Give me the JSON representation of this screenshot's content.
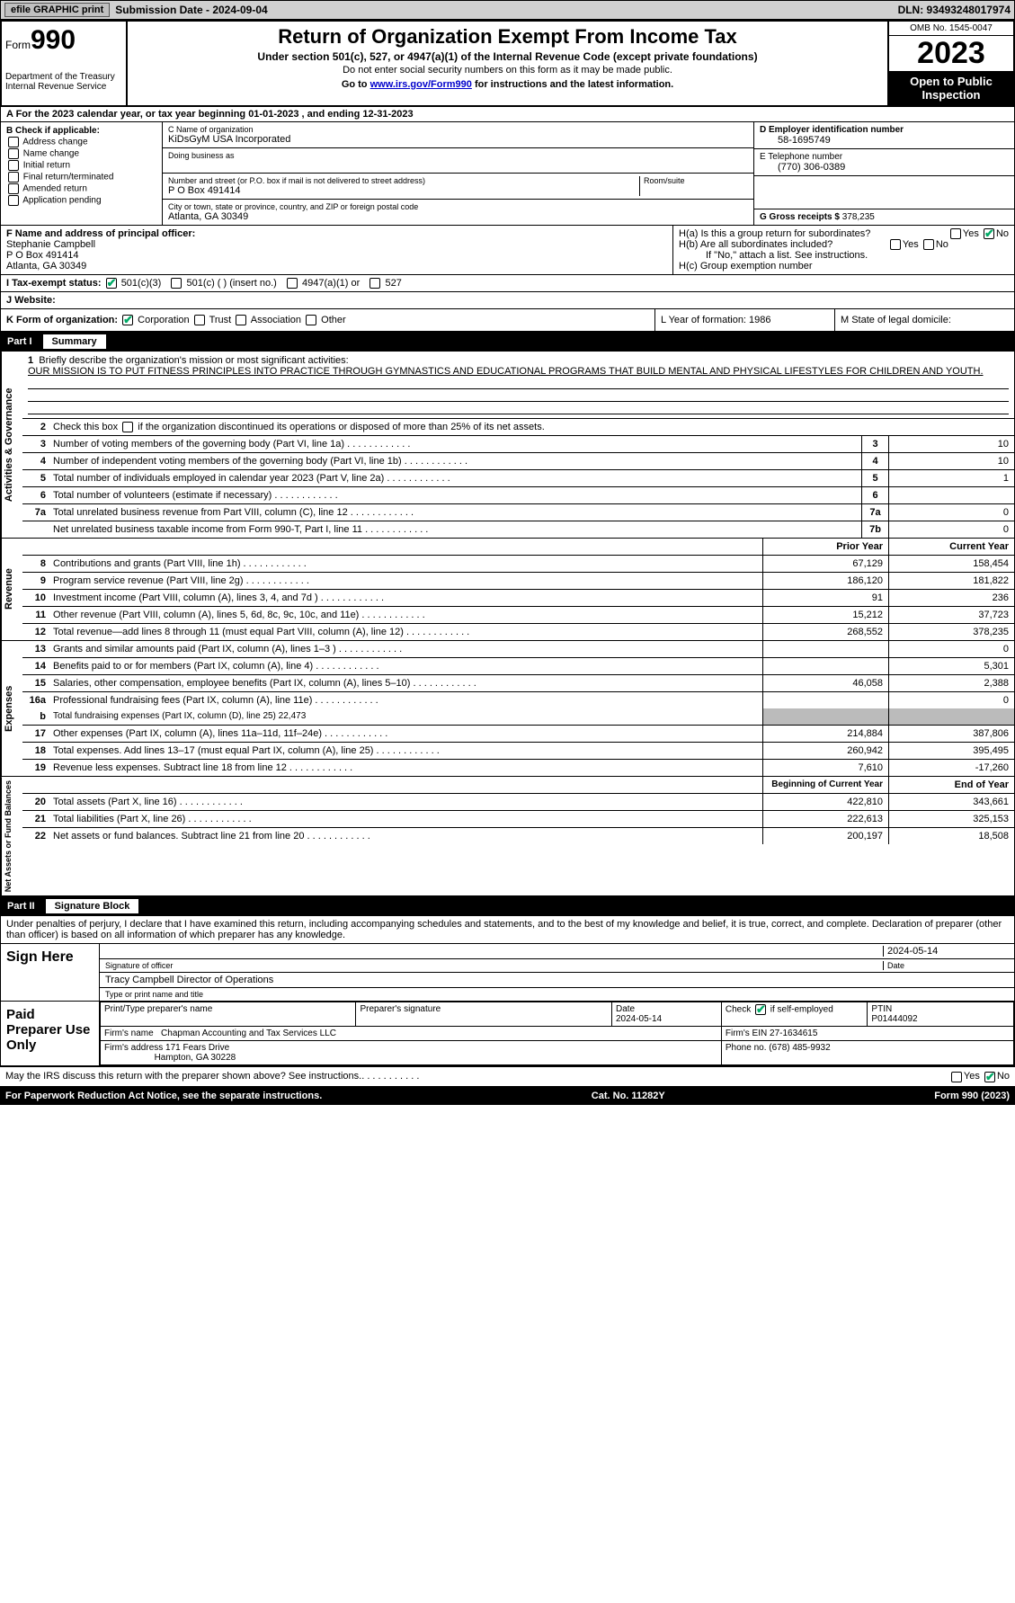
{
  "topbar": {
    "efile_label": "efile GRAPHIC print",
    "submission_label": "Submission Date - 2024-09-04",
    "dln": "DLN: 93493248017974"
  },
  "header": {
    "form_word": "Form",
    "form_num": "990",
    "dept": "Department of the Treasury Internal Revenue Service",
    "title": "Return of Organization Exempt From Income Tax",
    "sub1": "Under section 501(c), 527, or 4947(a)(1) of the Internal Revenue Code (except private foundations)",
    "sub2": "Do not enter social security numbers on this form as it may be made public.",
    "sub3_pre": "Go to ",
    "sub3_link": "www.irs.gov/Form990",
    "sub3_post": " for instructions and the latest information.",
    "omb": "OMB No. 1545-0047",
    "year": "2023",
    "open": "Open to Public Inspection"
  },
  "row_a": "A   For the 2023 calendar year, or tax year beginning 01-01-2023    , and ending 12-31-2023",
  "col_b": {
    "hdr": "B Check if applicable:",
    "addr": "Address change",
    "name": "Name change",
    "init": "Initial return",
    "final": "Final return/terminated",
    "amend": "Amended return",
    "app": "Application pending"
  },
  "col_c": {
    "name_lbl": "C Name of organization",
    "name_val": "KiDsGyM USA Incorporated",
    "dba_lbl": "Doing business as",
    "street_lbl": "Number and street (or P.O. box if mail is not delivered to street address)",
    "street_val": "P O Box 491414",
    "room_lbl": "Room/suite",
    "city_lbl": "City or town, state or province, country, and ZIP or foreign postal code",
    "city_val": "Atlanta, GA   30349"
  },
  "col_de": {
    "d_lbl": "D Employer identification number",
    "d_val": "58-1695749",
    "e_lbl": "E Telephone number",
    "e_val": "(770) 306-0389",
    "g_lbl": "G Gross receipts $ ",
    "g_val": "378,235"
  },
  "row_f": {
    "f_lbl": "F  Name and address of principal officer:",
    "f_name": "Stephanie Campbell",
    "f_addr1": "P O Box 491414",
    "f_addr2": "Atlanta, GA   30349",
    "ha": "H(a)  Is this a group return for subordinates?",
    "hb": "H(b)  Are all subordinates included?",
    "hb_note": "If \"No,\" attach a list. See instructions.",
    "hc": "H(c)  Group exemption number ",
    "yes": "Yes",
    "no": "No"
  },
  "row_i": {
    "lbl": "I     Tax-exempt status:",
    "c3": "501(c)(3)",
    "cx": "501(c) (   ) (insert no.)",
    "a1": "4947(a)(1) or",
    "527": "527"
  },
  "row_j": {
    "lbl": "J     Website: "
  },
  "row_klm": {
    "k": "K Form of organization:",
    "corp": "Corporation",
    "trust": "Trust",
    "assoc": "Association",
    "other": "Other",
    "l": "L Year of formation: 1986",
    "m": "M State of legal domicile: "
  },
  "part1": {
    "num": "Part I",
    "title": "Summary"
  },
  "summary": {
    "sec_ag": "Activities & Governance",
    "sec_rev": "Revenue",
    "sec_exp": "Expenses",
    "sec_na": "Net Assets or Fund Balances",
    "l1_lbl": "Briefly describe the organization's mission or most significant activities:",
    "l1_val": "OUR MISSION IS TO PUT FITNESS PRINCIPLES INTO PRACTICE THROUGH GYMNASTICS AND EDUCATIONAL PROGRAMS THAT BUILD MENTAL AND PHYSICAL LIFESTYLES FOR CHILDREN AND YOUTH.",
    "l2": "Check this box         if the organization discontinued its operations or disposed of more than 25% of its net assets.",
    "l3": "Number of voting members of the governing body (Part VI, line 1a)",
    "l3v": "10",
    "l4": "Number of independent voting members of the governing body (Part VI, line 1b)",
    "l4v": "10",
    "l5": "Total number of individuals employed in calendar year 2023 (Part V, line 2a)",
    "l5v": "1",
    "l6": "Total number of volunteers (estimate if necessary)",
    "l6v": "",
    "l7a": "Total unrelated business revenue from Part VIII, column (C), line 12",
    "l7av": "0",
    "l7b": "Net unrelated business taxable income from Form 990-T, Part I, line 11",
    "l7bv": "0",
    "prior": "Prior Year",
    "current": "Current Year",
    "rows_rev": [
      {
        "n": "8",
        "d": "Contributions and grants (Part VIII, line 1h)",
        "p": "67,129",
        "c": "158,454"
      },
      {
        "n": "9",
        "d": "Program service revenue (Part VIII, line 2g)",
        "p": "186,120",
        "c": "181,822"
      },
      {
        "n": "10",
        "d": "Investment income (Part VIII, column (A), lines 3, 4, and 7d )",
        "p": "91",
        "c": "236"
      },
      {
        "n": "11",
        "d": "Other revenue (Part VIII, column (A), lines 5, 6d, 8c, 9c, 10c, and 11e)",
        "p": "15,212",
        "c": "37,723"
      },
      {
        "n": "12",
        "d": "Total revenue—add lines 8 through 11 (must equal Part VIII, column (A), line 12)",
        "p": "268,552",
        "c": "378,235"
      }
    ],
    "rows_exp": [
      {
        "n": "13",
        "d": "Grants and similar amounts paid (Part IX, column (A), lines 1–3 )",
        "p": "",
        "c": "0"
      },
      {
        "n": "14",
        "d": "Benefits paid to or for members (Part IX, column (A), line 4)",
        "p": "",
        "c": "5,301"
      },
      {
        "n": "15",
        "d": "Salaries, other compensation, employee benefits (Part IX, column (A), lines 5–10)",
        "p": "46,058",
        "c": "2,388"
      },
      {
        "n": "16a",
        "d": "Professional fundraising fees (Part IX, column (A), line 11e)",
        "p": "",
        "c": "0"
      }
    ],
    "l16b": "Total fundraising expenses (Part IX, column (D), line 25) 22,473",
    "rows_exp2": [
      {
        "n": "17",
        "d": "Other expenses (Part IX, column (A), lines 11a–11d, 11f–24e)",
        "p": "214,884",
        "c": "387,806"
      },
      {
        "n": "18",
        "d": "Total expenses. Add lines 13–17 (must equal Part IX, column (A), line 25)",
        "p": "260,942",
        "c": "395,495"
      },
      {
        "n": "19",
        "d": "Revenue less expenses. Subtract line 18 from line 12",
        "p": "7,610",
        "c": "-17,260"
      }
    ],
    "boy": "Beginning of Current Year",
    "eoy": "End of Year",
    "rows_na": [
      {
        "n": "20",
        "d": "Total assets (Part X, line 16)",
        "p": "422,810",
        "c": "343,661"
      },
      {
        "n": "21",
        "d": "Total liabilities (Part X, line 26)",
        "p": "222,613",
        "c": "325,153"
      },
      {
        "n": "22",
        "d": "Net assets or fund balances. Subtract line 21 from line 20",
        "p": "200,197",
        "c": "18,508"
      }
    ]
  },
  "part2": {
    "num": "Part II",
    "title": "Signature Block"
  },
  "sig": {
    "decl": "Under penalties of perjury, I declare that I have examined this return, including accompanying schedules and statements, and to the best of my knowledge and belief, it is true, correct, and complete. Declaration of preparer (other than officer) is based on all information of which preparer has any knowledge.",
    "sign_here": "Sign Here",
    "sig_off": "Signature of officer",
    "date": "Date",
    "date_v": "2024-05-14",
    "name_title": "Tracy Campbell  Director of Operations",
    "type_lbl": "Type or print name and title",
    "paid": "Paid Preparer Use Only",
    "pt_name": "Print/Type preparer's name",
    "pt_sig": "Preparer's signature",
    "pt_date_lbl": "Date",
    "pt_date": "2024-05-14",
    "check_se": "Check          if self-employed",
    "ptin_lbl": "PTIN",
    "ptin": "P01444092",
    "firm_name_lbl": "Firm's name   ",
    "firm_name": "Chapman Accounting and Tax Services LLC",
    "firm_ein_lbl": "Firm's EIN  ",
    "firm_ein": "27-1634615",
    "firm_addr_lbl": "Firm's address ",
    "firm_addr1": "171 Fears Drive",
    "firm_addr2": "Hampton, GA   30228",
    "phone_lbl": "Phone no. ",
    "phone": "(678) 485-9932",
    "discuss": "May the IRS discuss this return with the preparer shown above? See instructions."
  },
  "footer": {
    "pra": "For Paperwork Reduction Act Notice, see the separate instructions.",
    "cat": "Cat. No. 11282Y",
    "form": "Form 990 (2023)"
  },
  "colors": {
    "topbar_bg": "#d0d0d0",
    "shade": "#bbbbbb",
    "link": "#0000cc",
    "check": "#00aa66"
  }
}
